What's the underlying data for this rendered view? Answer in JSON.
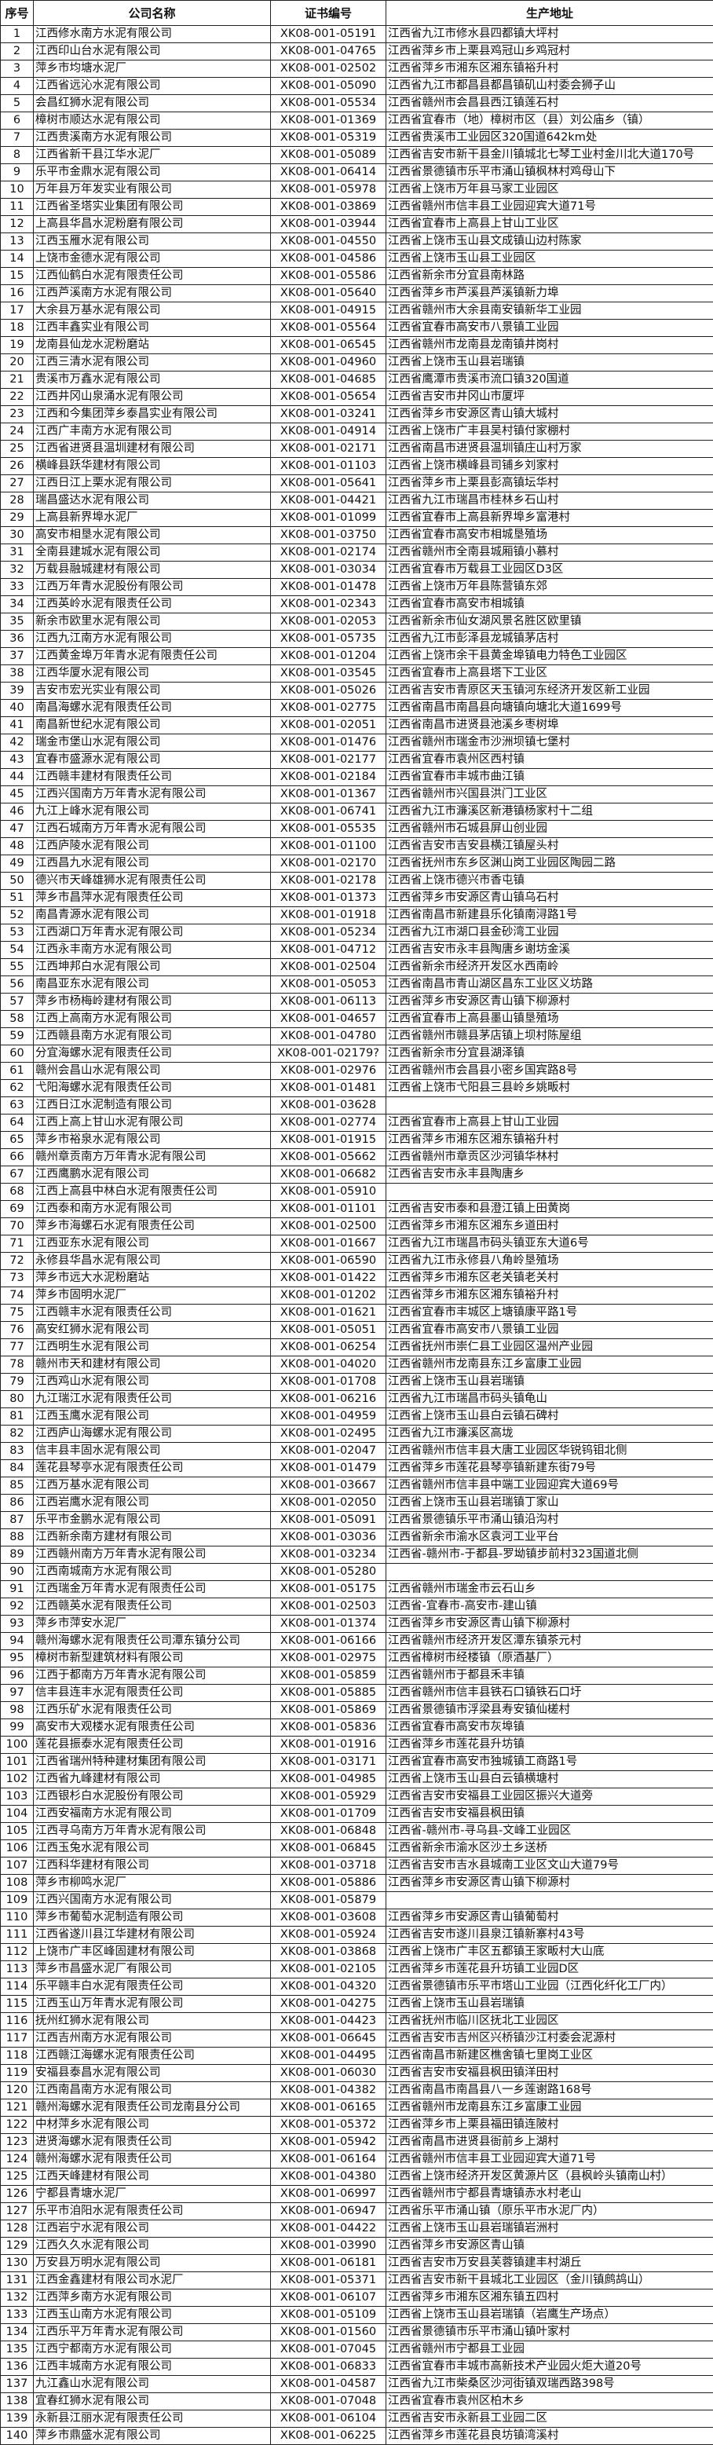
{
  "header": {
    "no": "序号",
    "name": "公司名称",
    "cert": "证书编号",
    "addr": "生产地址"
  },
  "rows": [
    [
      "1",
      "江西修水南方水泥有限公司",
      "XK08-001-05191",
      "江西省九江市修水县四都镇大坪村"
    ],
    [
      "2",
      "江西印山台水泥有限公司",
      "XK08-001-04765",
      "江西省萍乡市上栗县鸡冠山乡鸡冠村"
    ],
    [
      "3",
      "萍乡市均塘水泥厂",
      "XK08-001-02502",
      "江西省萍乡市湘东区湘东镇裕升村"
    ],
    [
      "4",
      "江西省远沁水泥有限公司",
      "XK08-001-05090",
      "江西省九江市都昌县都昌镇矶山村委会狮子山"
    ],
    [
      "5",
      "会昌红狮水泥有限公司",
      "XK08-001-05534",
      "江西省赣州市会昌县西江镇莲石村"
    ],
    [
      "6",
      "樟树市顺达水泥有限公司",
      "XK08-001-01369",
      "江西省宜春市（地）樟树市区（县）刘公庙乡（镇）"
    ],
    [
      "7",
      "江西贵溪南方水泥有限公司",
      "XK08-001-05319",
      "江西省贵溪市工业园区320国道642km处"
    ],
    [
      "8",
      "江西省新干县江华水泥厂",
      "XK08-001-05089",
      "江西省吉安市新干县金川镇城北七琴工业村金川北大道170号"
    ],
    [
      "9",
      "乐平市金鼎水泥有限公司",
      "XK08-001-06414",
      "江西省景德镇市乐平市涌山镇枫林村鸡母山下"
    ],
    [
      "10",
      "万年县万年发实业有限公司",
      "XK08-001-05978",
      "江西省上饶市万年县马家工业园区"
    ],
    [
      "11",
      "江西省圣塔实业集团有限公司",
      "XK08-001-03869",
      "江西省赣州市信丰县工业园迎宾大道71号"
    ],
    [
      "12",
      "上高县华昌水泥粉磨有限公司",
      "XK08-001-03944",
      "江西省宜春市上高县上甘山工业区"
    ],
    [
      "13",
      "江西玉雁水泥有限公司",
      "XK08-001-04550",
      "江西省上饶市玉山县文成镇山边村陈家"
    ],
    [
      "14",
      "上饶市金德水泥有限公司",
      "XK08-001-04586",
      "江西省上饶市玉山县工业园区"
    ],
    [
      "15",
      "江西仙鹤白水泥有限责任公司",
      "XK08-001-05586",
      "江西省新余市分宜县南林路"
    ],
    [
      "16",
      "江西芦溪南方水泥有限公司",
      "XK08-001-05640",
      "江西省萍乡市芦溪县芦溪镇新力埠"
    ],
    [
      "17",
      "大余县万基水泥有限公司",
      "XK08-001-04915",
      "江西省赣州市大余县南安镇新华工业园"
    ],
    [
      "18",
      "江西丰鑫实业有限公司",
      "XK08-001-05564",
      "江西省宜春市高安市八景镇工业园"
    ],
    [
      "19",
      "龙南县仙龙水泥粉磨站",
      "XK08-001-06545",
      "江西省赣州市龙南县龙南镇井岗村"
    ],
    [
      "20",
      "江西三清水泥有限公司",
      "XK08-001-04960",
      "江西省上饶市玉山县岩瑞镇"
    ],
    [
      "21",
      "贵溪市万鑫水泥有限公司",
      "XK08-001-04685",
      "江西省鹰潭市贵溪市流口镇320国道"
    ],
    [
      "22",
      "江西井冈山泉涌水泥有限公司",
      "XK08-001-05654",
      "江西省吉安市井冈山市厦坪"
    ],
    [
      "23",
      "江西和今集团萍乡泰昌实业有限公司",
      "XK08-001-03241",
      "江西省萍乡市安源区青山镇大城村"
    ],
    [
      "24",
      "江西广丰南方水泥有限公司",
      "XK08-001-04914",
      "江西省上饶市广丰县吴村镇付家棚村"
    ],
    [
      "25",
      "江西省进贤县温圳建材有限公司",
      "XK08-001-02171",
      "江西省南昌市进贤县温圳镇庄山村万家"
    ],
    [
      "26",
      "横峰县跃华建材有限公司",
      "XK08-001-01103",
      "江西省上饶市横峰县司铺乡刘家村"
    ],
    [
      "27",
      "江西日江上栗水泥有限公司",
      "XK08-001-05641",
      "江西省萍乡市上栗县彭高镇坛华村"
    ],
    [
      "28",
      "瑞昌盛达水泥有限公司",
      "XK08-001-04421",
      "江西省九江市瑞昌市桂林乡石山村"
    ],
    [
      "29",
      "上高县新界埠水泥厂",
      "XK08-001-01099",
      "江西省宜春市上高县新界埠乡富港村"
    ],
    [
      "30",
      "高安市相垦水泥有限公司",
      "XK08-001-03750",
      "江西省宜春市高安市相城垦殖场"
    ],
    [
      "31",
      "全南县建城水泥有限公司",
      "XK08-001-02174",
      "江西省赣州市全南县城厢镇小慕村"
    ],
    [
      "32",
      "万载县融城建材有限公司",
      "XK08-001-03034",
      "江西省宜春市万载县工业园区D3区"
    ],
    [
      "33",
      "江西万年青水泥股份有限公司",
      "XK08-001-01478",
      "江西省上饶市万年县陈营镇东郊"
    ],
    [
      "34",
      "江西英岭水泥有限责任公司",
      "XK08-001-02343",
      "江西省宜春市高安市相城镇"
    ],
    [
      "35",
      "新余市欧里水泥有限公司",
      "XK08-001-02053",
      "江西省新余市仙女湖风景名胜区欧里镇"
    ],
    [
      "36",
      "江西九江南方水泥有限公司",
      "XK08-001-05735",
      "江西省九江市彭泽县龙城镇茅店村"
    ],
    [
      "37",
      "江西黄金埠万年青水泥有限责任公司",
      "XK08-001-01204",
      "江西省上饶市余干县黄金埠镇电力特色工业园区"
    ],
    [
      "38",
      "江西华厦水泥有限公司",
      "XK08-001-03545",
      "江西省宜春市上高县塔下工业区"
    ],
    [
      "39",
      "吉安市宏光实业有限公司",
      "XK08-001-05026",
      "江西省吉安市青原区天玉镇河东经济开发区新工业园"
    ],
    [
      "40",
      "南昌海螺水泥有限责任公司",
      "XK08-001-02775",
      "江西省南昌市南昌县向塘镇向塘北大道1699号"
    ],
    [
      "41",
      "南昌新世纪水泥有限公司",
      "XK08-001-02051",
      "江西省南昌市进贤县池溪乡枣树埠"
    ],
    [
      "42",
      "瑞金市堡山水泥有限公司",
      "XK08-001-01476",
      "江西省赣州市瑞金市沙洲坝镇七堡村"
    ],
    [
      "43",
      "宜春市盛源水泥有限公司",
      "XK08-001-02177",
      "江西省宜春市袁州区西村镇"
    ],
    [
      "44",
      "江西赣丰建材有限责任公司",
      "XK08-001-02184",
      "江西省宜春市丰城市曲江镇"
    ],
    [
      "45",
      "江西兴国南方万年青水泥有限公司",
      "XK08-001-01367",
      "江西省赣州市兴国县洪门工业区"
    ],
    [
      "46",
      "九江上峰水泥有限公司",
      "XK08-001-06741",
      "江西省九江市濂溪区新港镇杨家村十二组"
    ],
    [
      "47",
      "江西石城南方万年青水泥有限公司",
      "XK08-001-05535",
      "江西省赣州市石城县屏山创业园"
    ],
    [
      "48",
      "江西庐陵水泥有限公司",
      "XK08-001-01100",
      "江西省吉安市吉安县横江镇屋头村"
    ],
    [
      "49",
      "江西昌九水泥有限公司",
      "XK08-001-02170",
      "江西省抚州市东乡区渊山岗工业园区陶园二路"
    ],
    [
      "50",
      "德兴市天峰雄狮水泥有限责任公司",
      "XK08-001-02178",
      "江西省上饶市德兴市香屯镇"
    ],
    [
      "51",
      "萍乡市昌萍水泥有限责任公司",
      "XK08-001-01373",
      "江西省萍乡市安源区青山镇乌石村"
    ],
    [
      "52",
      "南昌青源水泥有限公司",
      "XK08-001-01918",
      "江西省南昌市新建县乐化镇南浔路1号"
    ],
    [
      "53",
      "江西湖口万年青水泥有限公司",
      "XK08-001-05234",
      "江西省九江市湖口县金砂湾工业园"
    ],
    [
      "54",
      "江西永丰南方水泥有限公司",
      "XK08-001-04712",
      "江西省吉安市永丰县陶唐乡谢坊金溪"
    ],
    [
      "55",
      "江西坤邦白水泥有限公司",
      "XK08-001-02504",
      "江西省新余市经济开发区水西南岭"
    ],
    [
      "56",
      "南昌亚东水泥有限公司",
      "XK08-001-05053",
      "江西省南昌市青山湖区昌东工业区义坊路"
    ],
    [
      "57",
      "萍乡市杨梅岭建材有限公司",
      "XK08-001-06113",
      "江西省萍乡市安源区青山镇下柳源村"
    ],
    [
      "58",
      "江西上高南方水泥有限公司",
      "XK08-001-04657",
      "江西省宜春市上高县墨山镇垦殖场"
    ],
    [
      "59",
      "江西赣县南方水泥有限公司",
      "XK08-001-04780",
      "江西省赣州市赣县茅店镇上坝村陈屋组"
    ],
    [
      "60",
      "分宜海螺水泥有限责任公司",
      "XK08-001-02179?",
      "江西省新余市分宜县湖泽镇"
    ],
    [
      "61",
      "赣州会昌山水泥有限公司",
      "XK08-001-02976",
      "江西省赣州市会昌县小密乡国宾路8号"
    ],
    [
      "62",
      "弋阳海螺水泥有限责任公司",
      "XK08-001-01481",
      "江西省上饶市弋阳县三县岭乡姚畈村"
    ],
    [
      "63",
      "江西日江水泥制造有限公司",
      "XK08-001-03628",
      ""
    ],
    [
      "64",
      "江西上高上甘山水泥有限公司",
      "XK08-001-02774",
      "江西省宜春市上高县上甘山工业园"
    ],
    [
      "65",
      "萍乡市裕泉水泥有限公司",
      "XK08-001-01915",
      "江西省萍乡市湘东区湘东镇裕升村"
    ],
    [
      "66",
      "赣州章贡南方万年青水泥有限公司",
      "XK08-001-05662",
      "江西省赣州市章贡区沙河镇华林村"
    ],
    [
      "67",
      "江西鹰鹏水泥有限公司",
      "XK08-001-06682",
      "江西省吉安市永丰县陶唐乡"
    ],
    [
      "68",
      "江西上高县中林白水泥有限责任公司",
      "XK08-001-05910",
      ""
    ],
    [
      "69",
      "江西泰和南方水泥有限公司",
      "XK08-001-01101",
      "江西省吉安市泰和县澄江镇上田黄岗"
    ],
    [
      "70",
      "萍乡市海螺石水泥有限责任公司",
      "XK08-001-02500",
      "江西省萍乡市湘东区湘东乡道田村"
    ],
    [
      "71",
      "江西亚东水泥有限公司",
      "XK08-001-01667",
      "江西省九江市瑞昌市码头镇亚东大道6号"
    ],
    [
      "72",
      "永修县华昌水泥有限公司",
      "XK08-001-06590",
      "江西省九江市永修县八角岭垦殖场"
    ],
    [
      "73",
      "萍乡市远大水泥粉磨站",
      "XK08-001-01422",
      "江西省萍乡市湘东区老关镇老关村"
    ],
    [
      "74",
      "萍乡市固明水泥厂",
      "XK08-001-01202",
      "江西省萍乡市湘东区湘东镇裕升村"
    ],
    [
      "75",
      "江西赣丰水泥有限责任公司",
      "XK08-001-01621",
      "江西省宜春市丰城区上塘镇康平路1号"
    ],
    [
      "76",
      "高安红狮水泥有限公司",
      "XK08-001-05051",
      "江西省宜春市高安市八景镇工业园"
    ],
    [
      "77",
      "江西明生水泥有限公司",
      "XK08-001-06254",
      "江西省抚州市崇仁县工业园区温州产业园"
    ],
    [
      "78",
      "赣州市天和建材有限公司",
      "XK08-001-04020",
      "江西省赣州市龙南县东江乡富康工业园"
    ],
    [
      "79",
      "江西鸡山水泥有限公司",
      "XK08-001-01708",
      "江西省上饶市玉山县岩瑞镇"
    ],
    [
      "80",
      "九江瑞江水泥有限责任公司",
      "XK08-001-06216",
      "江西省九江市瑞昌市码头镇龟山"
    ],
    [
      "81",
      "江西玉鹰水泥有限公司",
      "XK08-001-04959",
      "江西省上饶市玉山县白云镇石碑村"
    ],
    [
      "82",
      "江西庐山海螺水泥有限公司",
      "XK08-001-02495",
      "江西省九江市濂溪区高垅"
    ],
    [
      "83",
      "信丰县丰固水泥有限公司",
      "XK08-001-02047",
      "江西省赣州市信丰县大唐工业园区华锐钨钼北侧"
    ],
    [
      "84",
      "莲花县琴亭水泥有限责任公司",
      "XK08-001-01479",
      "江西省萍乡市莲花县琴亭镇新建东街79号"
    ],
    [
      "85",
      "江西万基水泥有限公司",
      "XK08-001-03667",
      "江西省赣州市信丰县中端工业园迎宾大道69号"
    ],
    [
      "86",
      "江西岩鹰水泥有限公司",
      "XK08-001-02050",
      "江西省上饶市玉山县岩瑞镇丁家山"
    ],
    [
      "87",
      "乐平市金鹏水泥有限公司",
      "XK08-001-05091",
      "江西省景德镇乐平市涌山镇沿沟村"
    ],
    [
      "88",
      "江西新余南方建材有限公司",
      "XK08-001-03036",
      "江西省新余市渝水区袁河工业平台"
    ],
    [
      "89",
      "江西赣州南方万年青水泥有限公司",
      "XK08-001-03234",
      "江西省-赣州市-于都县-罗坳镇步前村323国道北侧"
    ],
    [
      "90",
      "江西南城南方水泥有限公司",
      "XK08-001-05280",
      ""
    ],
    [
      "91",
      "江西瑞金万年青水泥有限责任公司",
      "XK08-001-05175",
      "江西省赣州市瑞金市云石山乡"
    ],
    [
      "92",
      "江西赣英水泥有限责任公司",
      "XK08-001-02503",
      "江西省-宜春市-高安市-建山镇"
    ],
    [
      "93",
      "萍乡市萍安水泥厂",
      "XK08-001-01374",
      "江西省萍乡市安源区青山镇下柳源村"
    ],
    [
      "94",
      "赣州海螺水泥有限责任公司潭东镇分公司",
      "XK08-001-06166",
      "江西省赣州市经济开发区潭东镇茶元村"
    ],
    [
      "95",
      "樟树市新型建筑材料有限公司",
      "XK08-001-02975",
      "江西省樟树市经楼镇（原酒基厂）"
    ],
    [
      "96",
      "江西于都南方万年青水泥有限公司",
      "XK08-001-05859",
      "江西省赣州市于都县禾丰镇"
    ],
    [
      "97",
      "信丰县连丰水泥有限责任公司",
      "XK08-001-05885",
      "江西省赣州市信丰县铁石口镇铁石口圩"
    ],
    [
      "98",
      "江西乐矿水泥有限责任公司",
      "XK08-001-05869",
      "江西省景德镇市浮梁县寿安镇仙槎村"
    ],
    [
      "99",
      "高安市大观楼水泥有限责任公司",
      "XK08-001-05836",
      "江西省宜春市高安市灰埠镇"
    ],
    [
      "100",
      "莲花县振泰水泥有限责任公司",
      "XK08-001-01916",
      "江西省萍乡市莲花县升坊镇"
    ],
    [
      "101",
      "江西省瑞州特种建材集团有限公司",
      "XK08-001-03171",
      "江西省宜春市高安市独城镇工商路1号"
    ],
    [
      "102",
      "江西省九峰建材有限公司",
      "XK08-001-04985",
      "江西省上饶市玉山县白云镇横塘村"
    ],
    [
      "103",
      "江西银杉白水泥股份有限公司",
      "XK08-001-05929",
      "江西省吉安市安福县工业园区振兴大道旁"
    ],
    [
      "104",
      "江西安福南方水泥有限公司",
      "XK08-001-01709",
      "江西省吉安市安福县枫田镇"
    ],
    [
      "105",
      "江西寻乌南方万年青水泥有限公司",
      "XK08-001-06848",
      "江西省-赣州市-寻乌县-文峰工业园区"
    ],
    [
      "106",
      "江西玉兔水泥有限公司",
      "XK08-001-06845",
      "江西省新余市渝水区沙土乡送桥"
    ],
    [
      "107",
      "江西科华建材有限公司",
      "XK08-001-03718",
      "江西省吉安市吉水县城南工业区文山大道79号"
    ],
    [
      "108",
      "萍乡市柳鸣水泥厂",
      "XK08-001-05886",
      "江西省萍乡市安源区青山镇下柳源村"
    ],
    [
      "109",
      "江西兴国南方水泥有限公司",
      "XK08-001-05879",
      ""
    ],
    [
      "110",
      "萍乡市葡萄水泥制造有限公司",
      "XK08-001-03608",
      "江西省萍乡市安源区青山镇葡萄村"
    ],
    [
      "111",
      "江西省遂川县江华建材有限公司",
      "XK08-001-05924",
      "江西省吉安市遂川县泉江镇新寨村43号"
    ],
    [
      "112",
      "上饶市广丰区峰固建材有限公司",
      "XK08-001-03868",
      "江西省上饶市广丰区五都镇王家畈村大山底"
    ],
    [
      "113",
      "萍乡市昌盛水泥厂有限公司",
      "XK08-001-02105",
      "江西省萍乡市莲花县升坊镇工业园D区"
    ],
    [
      "114",
      "乐平赣丰白水泥有限责任公司",
      "XK08-001-04320",
      "江西省景德镇市乐平市塔山工业园（江西化纤化工厂内）"
    ],
    [
      "115",
      "江西玉山万年青水泥有限公司",
      "XK08-001-04275",
      "江西省上饶市玉山县岩瑞镇"
    ],
    [
      "116",
      "抚州红狮水泥有限公司",
      "XK08-001-04423",
      "江西省抚州市临川区抚北工业园区"
    ],
    [
      "117",
      "江西吉州南方水泥有限公司",
      "XK08-001-06645",
      "江西省吉安市吉州区兴桥镇沙江村委会泥源村"
    ],
    [
      "118",
      "江西赣江海螺水泥有限责任公司",
      "XK08-001-04495",
      "江西省南昌市新建区樵舍镇七里岗工业区"
    ],
    [
      "119",
      "安福县泰昌水泥有限公司",
      "XK08-001-06030",
      "江西省吉安市安福县枫田镇洋田村"
    ],
    [
      "120",
      "江西南昌南方水泥有限公司",
      "XK08-001-04382",
      "江西省南昌市南昌县八一乡莲谢路168号"
    ],
    [
      "121",
      "赣州海螺水泥有限责任公司龙南县分公司",
      "XK08-001-06165",
      "江西省赣州市龙南县东江乡富康工业园"
    ],
    [
      "122",
      "中材萍乡水泥有限公司",
      "XK08-001-05372",
      "江西省萍乡市上栗县福田镇连陂村"
    ],
    [
      "123",
      "进贤海螺水泥有限责任公司",
      "XK08-001-05942",
      "江西省南昌市进贤县衙前乡上湖村"
    ],
    [
      "124",
      "赣州海螺水泥有限责任公司",
      "XK08-001-06164",
      "江西省赣州市信丰县工业园迎宾大道71号"
    ],
    [
      "125",
      "江西天峰建材有限公司",
      "XK08-001-04380",
      "江西省上饶市经济开发区黄源片区（县枫岭头镇南山村）"
    ],
    [
      "126",
      "宁都县青塘水泥厂",
      "XK08-001-06997",
      "江西省赣州市宁都县青塘镇赤水村老山"
    ],
    [
      "127",
      "乐平市洎阳水泥有限责任公司",
      "XK08-001-06947",
      "江西省乐平市涌山镇（原乐平市水泥厂内）"
    ],
    [
      "128",
      "江西岩宁水泥有限公司",
      "XK08-001-04422",
      "江西省上饶市玉山县岩瑞镇岩洲村"
    ],
    [
      "129",
      "江西久久水泥有限公司",
      "XK08-001-03990",
      "江西省萍乡市安源区青山镇"
    ],
    [
      "130",
      "万安县万明水泥有限公司",
      "XK08-001-06181",
      "江西省吉安市万安县芙蓉镇建丰村湖丘"
    ],
    [
      "131",
      "江西金鑫建材有限公司水泥厂",
      "XK08-001-05371",
      "江西省吉安市新干县城北工业园区（金川镇鹧鸪山）"
    ],
    [
      "132",
      "江西萍乡南方水泥有限公司",
      "XK08-001-06107",
      "江西省萍乡市湘东区湘东镇五四村"
    ],
    [
      "133",
      "江西玉山南方水泥有限公司",
      "XK08-001-05109",
      "江西省上饶市玉山县岩瑞镇（岩鹰生产场点）"
    ],
    [
      "134",
      "江西乐平万年青水泥有限公司",
      "XK08-001-01560",
      "江西省景德镇市乐平市涌山镇叶家村"
    ],
    [
      "135",
      "江西宁都南方水泥有限公司",
      "XK08-001-07045",
      "江西省赣州市宁都县工业园"
    ],
    [
      "136",
      "江西丰城南方水泥有限公司",
      "XK08-001-06833",
      "江西省宜春市丰城市高新技术产业园火炬大道20号"
    ],
    [
      "137",
      "九江鑫山水泥有限公司",
      "XK08-001-04587",
      "江西省九江市柴桑区沙河街镇双瑞西路398号"
    ],
    [
      "138",
      "宜春红狮水泥有限公司",
      "XK08-001-07048",
      "江西省宜春市袁州区柏木乡"
    ],
    [
      "139",
      "永新县江丽水泥有限责任公司",
      "XK08-001-06104",
      "江西省吉安市永新县工业园二区"
    ],
    [
      "140",
      "萍乡市鼎盛水泥有限公司",
      "XK08-001-06225",
      "江西省萍乡市莲花县良坊镇湾溪村"
    ]
  ]
}
